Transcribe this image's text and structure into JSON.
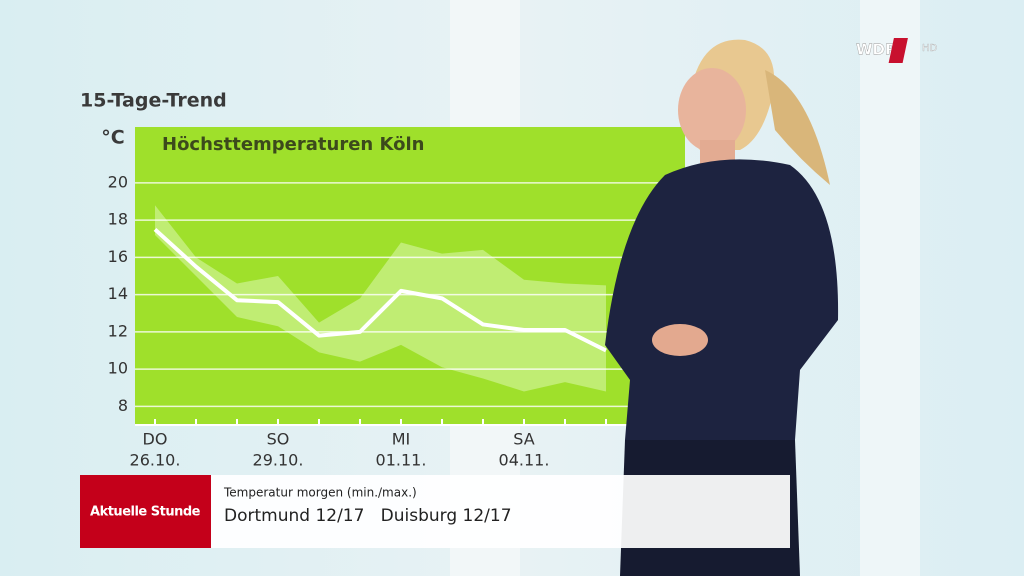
{
  "chart_data": {
    "type": "line",
    "heading": "15-Tage-Trend",
    "title": "Höchsttemperaturen Köln",
    "y_label": "°C",
    "categories": [
      "DO",
      null,
      null,
      "SO",
      null,
      null,
      "MI",
      null,
      null,
      "SA",
      null,
      null
    ],
    "category_dates": [
      "26.10.",
      null,
      null,
      "29.10.",
      null,
      null,
      "01.11.",
      null,
      null,
      "04.11.",
      null,
      null
    ],
    "values": [
      17.5,
      15.5,
      13.7,
      13.6,
      11.8,
      12.0,
      14.2,
      13.8,
      12.4,
      12.1,
      12.1,
      11.0
    ],
    "band": {
      "upper": [
        18.8,
        16.0,
        14.6,
        15.0,
        12.5,
        13.8,
        16.8,
        16.2,
        16.4,
        14.8,
        14.6,
        14.5
      ],
      "lower": [
        17.2,
        15.0,
        12.8,
        12.3,
        10.9,
        10.4,
        11.3,
        10.1,
        9.5,
        8.8,
        9.3,
        8.8
      ]
    },
    "color": "#ffffff",
    "background_color": "#9fe02b",
    "band_color": "#c6ee80",
    "ylim": [
      7,
      23
    ],
    "yticks": [
      8,
      10,
      12,
      14,
      16,
      18,
      20
    ],
    "grid": true
  },
  "logo": {
    "brand": "WDR",
    "badge": "HD"
  },
  "lower_third": {
    "show": "Aktuelle Stunde",
    "caption": "Temperatur morgen (min./max.)",
    "line": "Dortmund 12/17   Duisburg 12/17"
  }
}
